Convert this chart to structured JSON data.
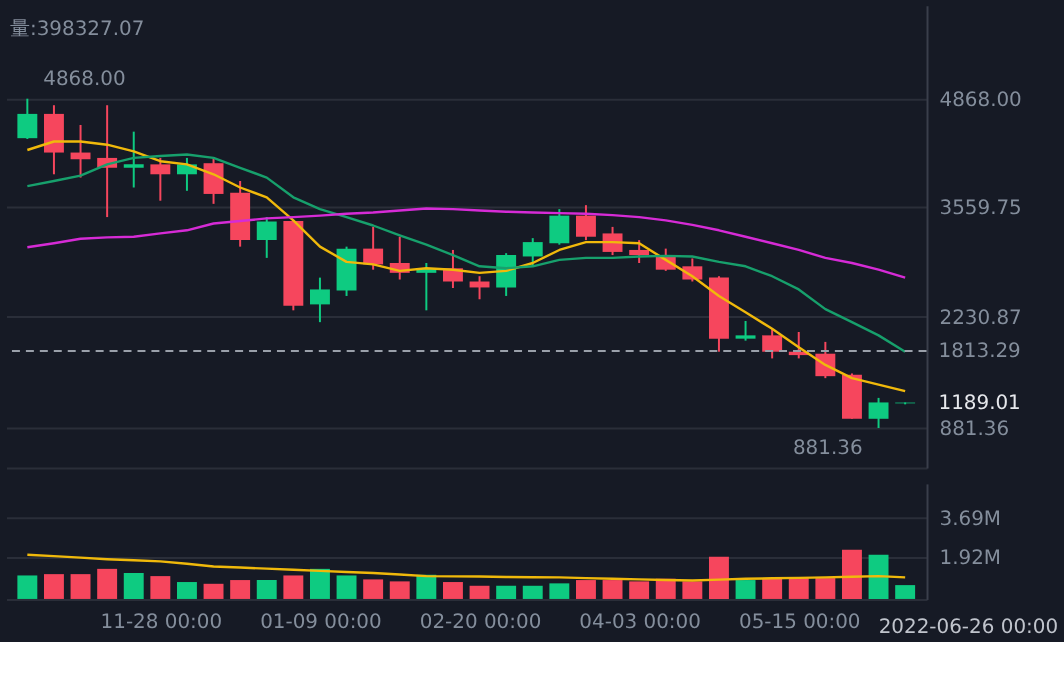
{
  "chart_data": [
    {
      "type": "candlestick",
      "x": [
        "2021-10-24",
        "2021-10-31",
        "2021-11-07",
        "2021-11-14",
        "2021-11-21",
        "2021-11-28",
        "2021-12-05",
        "2021-12-12",
        "2021-12-19",
        "2021-12-26",
        "2022-01-02",
        "2022-01-09",
        "2022-01-16",
        "2022-01-23",
        "2022-01-30",
        "2022-02-06",
        "2022-02-13",
        "2022-02-20",
        "2022-02-27",
        "2022-03-06",
        "2022-03-13",
        "2022-03-20",
        "2022-03-27",
        "2022-04-03",
        "2022-04-10",
        "2022-04-17",
        "2022-04-24",
        "2022-05-01",
        "2022-05-08",
        "2022-05-15",
        "2022-05-22",
        "2022-05-29",
        "2022-06-05",
        "2022-06-12"
      ],
      "ohlc": [
        [
          4390,
          4868,
          4380,
          4684
        ],
        [
          4684,
          4789,
          3953,
          4216
        ],
        [
          4216,
          4550,
          3913,
          4135
        ],
        [
          4151,
          4789,
          3435,
          4032
        ],
        [
          4032,
          4469,
          3793,
          4073
        ],
        [
          4073,
          4151,
          3633,
          3953
        ],
        [
          3953,
          4151,
          3753,
          4073
        ],
        [
          4087,
          4151,
          3595,
          3715
        ],
        [
          3729,
          3872,
          3077,
          3156
        ],
        [
          3156,
          3435,
          2941,
          3380
        ],
        [
          3388,
          3388,
          2306,
          2361
        ],
        [
          2378,
          2702,
          2163,
          2559
        ],
        [
          2545,
          3077,
          2480,
          3053
        ],
        [
          3053,
          3316,
          2798,
          2862
        ],
        [
          2879,
          3197,
          2679,
          2760
        ],
        [
          2760,
          2879,
          2306,
          2815
        ],
        [
          2815,
          3037,
          2576,
          2655
        ],
        [
          2655,
          2719,
          2440,
          2583
        ],
        [
          2583,
          2998,
          2480,
          2975
        ],
        [
          2958,
          3180,
          2839,
          3132
        ],
        [
          3118,
          3531,
          3101,
          3452
        ],
        [
          3452,
          3579,
          3156,
          3197
        ],
        [
          3237,
          3316,
          2975,
          3013
        ],
        [
          3037,
          3156,
          2879,
          2975
        ],
        [
          2958,
          3053,
          2784,
          2798
        ],
        [
          2839,
          2934,
          2655,
          2679
        ],
        [
          2702,
          2719,
          1805,
          1963
        ],
        [
          1963,
          2177,
          1939,
          2003
        ],
        [
          2003,
          2082,
          1724,
          1805
        ],
        [
          1805,
          2044,
          1724,
          1764
        ],
        [
          1781,
          1924,
          1485,
          1509
        ],
        [
          1526,
          1542,
          993,
          993
        ],
        [
          993,
          1246,
          881.36,
          1191
        ],
        [
          1180,
          1191,
          1168,
          1189.01
        ]
      ],
      "colors": [
        "#0ecb81",
        "#f6465d",
        "#f6465d",
        "#f6465d",
        "#0ecb81",
        "#f6465d",
        "#0ecb81",
        "#f6465d",
        "#f6465d",
        "#0ecb81",
        "#f6465d",
        "#0ecb81",
        "#0ecb81",
        "#f6465d",
        "#f6465d",
        "#0ecb81",
        "#f6465d",
        "#f6465d",
        "#0ecb81",
        "#0ecb81",
        "#0ecb81",
        "#f6465d",
        "#f6465d",
        "#f6465d",
        "#f6465d",
        "#f6465d",
        "#f6465d",
        "#0ecb81",
        "#f6465d",
        "#f6465d",
        "#f6465d",
        "#f6465d",
        "#0ecb81",
        "#0ecb81"
      ],
      "series": [
        {
          "type": "line",
          "color": "#f0b90b",
          "values": [
            4247,
            4350,
            4350,
            4311,
            4230,
            4111,
            4073,
            3953,
            3793,
            3674,
            3395,
            3077,
            2893,
            2862,
            2784,
            2815,
            2798,
            2760,
            2784,
            2879,
            3037,
            3132,
            3132,
            3118,
            2917,
            2719,
            2480,
            2282,
            2082,
            1860,
            1645,
            1485,
            1406,
            1328
          ]
        },
        {
          "type": "line",
          "color": "#17a06c",
          "values": [
            3810,
            3872,
            3937,
            4073,
            4151,
            4175,
            4192,
            4151,
            4032,
            3913,
            3674,
            3531,
            3435,
            3333,
            3213,
            3101,
            2975,
            2839,
            2815,
            2839,
            2917,
            2941,
            2941,
            2958,
            2965,
            2958,
            2893,
            2839,
            2719,
            2559,
            2321,
            2163,
            2003,
            1805
          ]
        },
        {
          "type": "line",
          "color": "#d62bd6",
          "values": [
            3070,
            3118,
            3173,
            3189,
            3197,
            3237,
            3275,
            3357,
            3388,
            3419,
            3435,
            3452,
            3476,
            3490,
            3514,
            3538,
            3531,
            3514,
            3500,
            3490,
            3483,
            3476,
            3459,
            3435,
            3395,
            3340,
            3275,
            3197,
            3118,
            3037,
            2941,
            2879,
            2798,
            2702
          ]
        }
      ],
      "xlim": [
        "2021-10-21",
        "2022-06-15"
      ],
      "ylim": [
        404,
        6000
      ],
      "yticks": [
        {
          "value": 4868,
          "label": "4868.00"
        },
        3559.75,
        2230.87,
        881.36
      ],
      "grid": "y",
      "tick_labels": "y",
      "ref_lines": [
        {
          "axis": "y",
          "value": 1813.29,
          "label": "1813.29",
          "line_style": "dashed",
          "color": "#9aa0aa"
        }
      ],
      "annotations": [
        "量:398327.07",
        {
          "text": "4868.00",
          "x": "2021-10-24",
          "y": 4868
        },
        {
          "text": "881.36",
          "x": "2022-06-05",
          "y": 881.36
        },
        {
          "text": "1189.01",
          "x": "2022-06-12",
          "y": 1189.01
        }
      ]
    },
    {
      "type": "bar",
      "x": [
        "2021-10-24",
        "2021-10-31",
        "2021-11-07",
        "2021-11-14",
        "2021-11-21",
        "2021-11-28",
        "2021-12-05",
        "2021-12-12",
        "2021-12-19",
        "2021-12-26",
        "2022-01-02",
        "2022-01-09",
        "2022-01-16",
        "2022-01-23",
        "2022-01-30",
        "2022-02-06",
        "2022-02-13",
        "2022-02-20",
        "2022-02-27",
        "2022-03-06",
        "2022-03-13",
        "2022-03-20",
        "2022-03-27",
        "2022-04-03",
        "2022-04-10",
        "2022-04-17",
        "2022-04-24",
        "2022-05-01",
        "2022-05-08",
        "2022-05-15",
        "2022-05-22",
        "2022-05-29",
        "2022-06-05",
        "2022-06-12"
      ],
      "series": [
        {
          "type": "bar",
          "colors": [
            "#0ecb81",
            "#f6465d",
            "#f6465d",
            "#f6465d",
            "#0ecb81",
            "#f6465d",
            "#0ecb81",
            "#f6465d",
            "#f6465d",
            "#0ecb81",
            "#f6465d",
            "#0ecb81",
            "#0ecb81",
            "#f6465d",
            "#f6465d",
            "#0ecb81",
            "#f6465d",
            "#f6465d",
            "#0ecb81",
            "#0ecb81",
            "#0ecb81",
            "#f6465d",
            "#f6465d",
            "#f6465d",
            "#f6465d",
            "#f6465d",
            "#f6465d",
            "#0ecb81",
            "#f6465d",
            "#f6465d",
            "#f6465d",
            "#f6465d",
            "#0ecb81",
            "#0ecb81"
          ],
          "values": [
            1.07,
            1.13,
            1.13,
            1.37,
            1.18,
            1.04,
            0.77,
            0.69,
            0.86,
            0.86,
            1.07,
            1.37,
            1.07,
            0.89,
            0.8,
            1.1,
            0.77,
            0.6,
            0.6,
            0.6,
            0.71,
            0.86,
            0.86,
            0.8,
            0.92,
            0.8,
            1.92,
            0.86,
            0.95,
            0.95,
            0.95,
            2.24,
            2.01,
            0.63
          ]
        },
        {
          "type": "line",
          "color": "#f0b90b",
          "values": [
            2.01,
            1.95,
            1.88,
            1.81,
            1.76,
            1.71,
            1.6,
            1.48,
            1.43,
            1.38,
            1.33,
            1.28,
            1.23,
            1.18,
            1.11,
            1.04,
            1.03,
            1.02,
            1.0,
            0.99,
            0.98,
            0.95,
            0.92,
            0.89,
            0.86,
            0.84,
            0.88,
            0.92,
            0.94,
            0.96,
            0.98,
            1.01,
            1.04,
            0.98
          ]
        }
      ],
      "xlim": [
        "2021-10-21",
        "2022-06-15"
      ],
      "xticks": [
        {
          "value": "2021-11-28",
          "label": "11-28 00:00"
        },
        {
          "value": "2022-01-09",
          "label": "01-09 00:00"
        },
        {
          "value": "2022-02-20",
          "label": "02-20 00:00"
        },
        {
          "value": "2022-04-03",
          "label": "04-03 00:00"
        },
        {
          "value": "2022-05-15",
          "label": "05-15 00:00"
        }
      ],
      "ylim": [
        0,
        5.26
      ],
      "yticks": [
        {
          "value": 3.69,
          "label": "3.69M"
        },
        {
          "value": 1.92,
          "label": "1.92M"
        }
      ],
      "grid": "y",
      "annotations": [
        "2022-06-26 00:00"
      ]
    }
  ]
}
